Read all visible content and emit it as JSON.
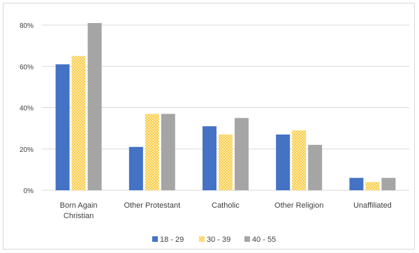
{
  "chart_data": {
    "type": "bar",
    "title": "",
    "xlabel": "",
    "ylabel": "",
    "categories": [
      "Born Again Christian",
      "Other Protestant",
      "Catholic",
      "Other Religion",
      "Unaffiliated"
    ],
    "category_lines": [
      [
        "Born Again",
        "Christian"
      ],
      [
        "Other Protestant"
      ],
      [
        "Catholic"
      ],
      [
        "Other Religion"
      ],
      [
        "Unaffiliated"
      ]
    ],
    "series": [
      {
        "name": "18 - 29",
        "values": [
          61,
          21,
          31,
          27,
          6
        ],
        "color": "#4472C4",
        "pattern": "solid"
      },
      {
        "name": "30 - 39",
        "values": [
          65,
          37,
          27,
          29,
          4
        ],
        "color": "#FFC000",
        "pattern": "dotted"
      },
      {
        "name": "40 - 55",
        "values": [
          81,
          37,
          35,
          22,
          6
        ],
        "color": "#A5A5A5",
        "pattern": "solid"
      }
    ],
    "ylim": [
      0,
      80
    ],
    "yticks": [
      0,
      20,
      40,
      60,
      80
    ],
    "ytick_labels": [
      "0%",
      "20%",
      "40%",
      "60%",
      "80%"
    ],
    "grid": true,
    "legend_position": "bottom"
  }
}
